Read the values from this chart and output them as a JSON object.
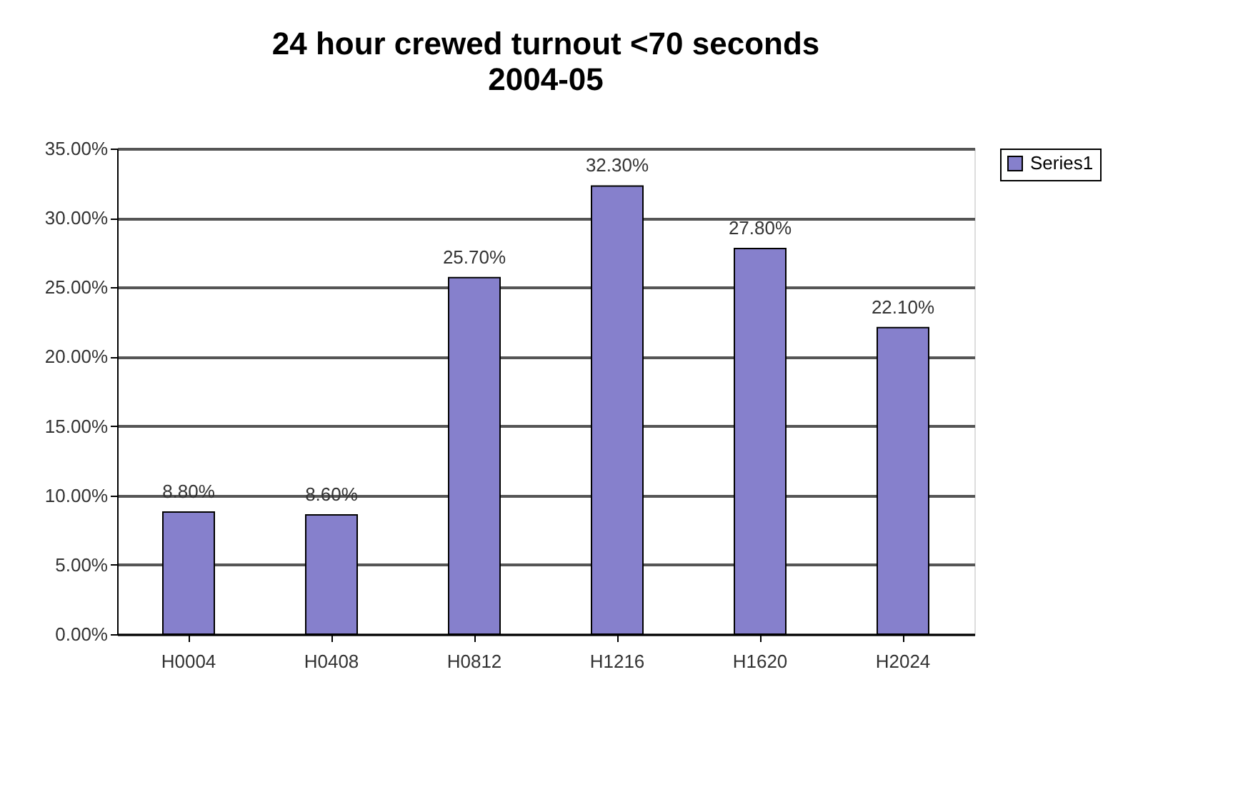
{
  "chart_data": {
    "type": "bar",
    "title": "24 hour crewed turnout <70 seconds",
    "subtitle": "2004-05",
    "categories": [
      "H0004",
      "H0408",
      "H0812",
      "H1216",
      "H1620",
      "H2024"
    ],
    "series": [
      {
        "name": "Series1",
        "color": "#8680cc",
        "values": [
          8.8,
          8.6,
          25.7,
          32.3,
          27.8,
          22.1
        ]
      }
    ],
    "value_labels": [
      "8.80%",
      "8.60%",
      "25.70%",
      "32.30%",
      "27.80%",
      "22.10%"
    ],
    "ylim": [
      0,
      35
    ],
    "yticks": [
      {
        "value": 0,
        "label": "0.00%"
      },
      {
        "value": 5,
        "label": "5.00%"
      },
      {
        "value": 10,
        "label": "10.00%"
      },
      {
        "value": 15,
        "label": "15.00%"
      },
      {
        "value": 20,
        "label": "20.00%"
      },
      {
        "value": 25,
        "label": "25.00%"
      },
      {
        "value": 30,
        "label": "30.00%"
      },
      {
        "value": 35,
        "label": "35.00%"
      }
    ],
    "grid": "y",
    "legend": "right"
  }
}
